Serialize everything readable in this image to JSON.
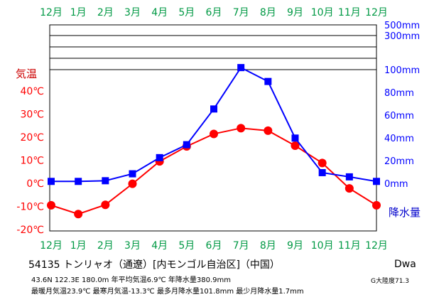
{
  "chart_data": {
    "type": "line",
    "categories": [
      "12月",
      "1月",
      "2月",
      "3月",
      "4月",
      "5月",
      "6月",
      "7月",
      "8月",
      "9月",
      "10月",
      "11月",
      "12月"
    ],
    "series": [
      {
        "name": "気温",
        "axis": "left",
        "unit": "℃",
        "color": "#ff0000",
        "marker": "circle",
        "values": [
          -9.5,
          -13.3,
          -9.3,
          -0.2,
          9.5,
          16.0,
          21.4,
          23.9,
          22.8,
          16.3,
          8.8,
          -2.2,
          -9.5
        ]
      },
      {
        "name": "降水量",
        "axis": "right",
        "unit": "mm",
        "color": "#0000ff",
        "marker": "square",
        "values": [
          1.7,
          1.7,
          2.3,
          8.4,
          22.6,
          34.0,
          65.4,
          101.8,
          89.6,
          39.8,
          9.4,
          5.7,
          1.7
        ]
      }
    ],
    "left_axis": {
      "label": "気温",
      "ticks": [
        "40℃",
        "30℃",
        "20℃",
        "10℃",
        "0℃",
        "-10℃",
        "-20℃"
      ],
      "tick_values": [
        40,
        30,
        20,
        10,
        0,
        -10,
        -20
      ],
      "range": [
        -20,
        40
      ]
    },
    "right_axis": {
      "label": "降水量",
      "ticks": [
        "500mm",
        "300mm",
        "100mm",
        "80mm",
        "60mm",
        "40mm",
        "20mm",
        "0mm"
      ],
      "tick_values": [
        500,
        300,
        100,
        80,
        60,
        40,
        20,
        0
      ],
      "linear_range": [
        0,
        100
      ],
      "compressed_lines": [
        150,
        200,
        300,
        400,
        500
      ]
    },
    "grid": false,
    "colors": {
      "month_labels": "#009944",
      "temp": "#ff0000",
      "precip": "#0000ff",
      "frame": "#000000"
    }
  },
  "station": {
    "title": "54135 トンリャオ（通遼）[内モンゴル自治区]（中国）",
    "stats_line1": "43.6N  122.3E  180.0m  年平均気温6.9℃  年降水量380.9mm",
    "stats_line2": "最暖月気温23.9℃ 最寒月気温-13.3℃ 最多月降水量101.8mm 最少月降水量1.7mm",
    "climate_class": "Dwa",
    "continentality": "G大陸度71.3"
  }
}
